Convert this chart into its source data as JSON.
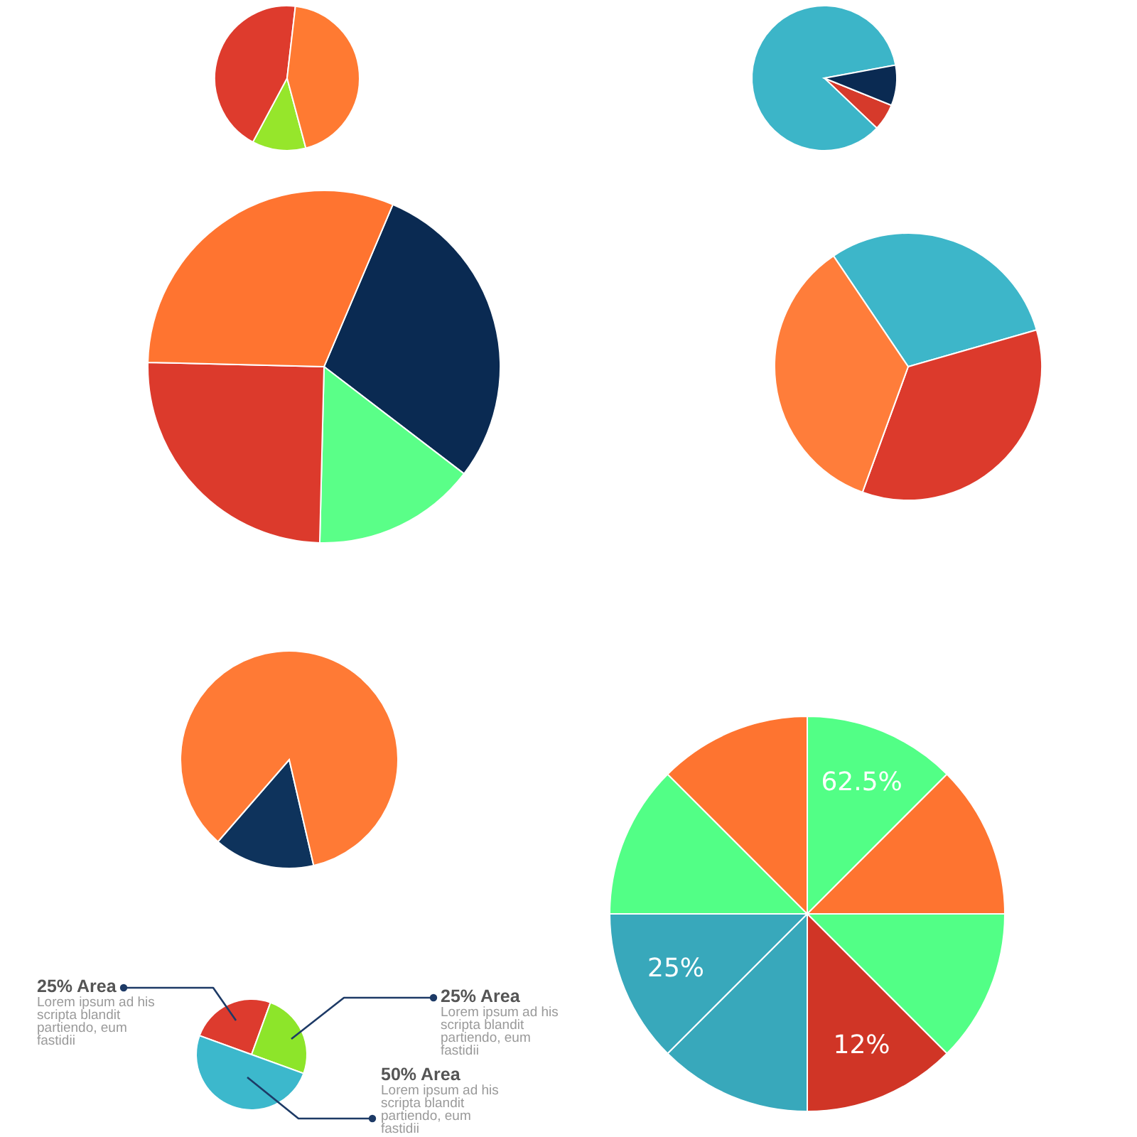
{
  "chart_data": [
    {
      "type": "pie",
      "categories": [
        null,
        null,
        null
      ],
      "values": [
        12,
        44,
        44
      ],
      "colors": [
        "#96e62b",
        "#de3b2d",
        "#ff7a32"
      ]
    },
    {
      "type": "pie",
      "categories": [
        null,
        null,
        null
      ],
      "values": [
        6,
        85,
        9
      ],
      "colors": [
        "#d63a2b",
        "#3cb5c8",
        "#0a2a52"
      ]
    },
    {
      "type": "pie",
      "categories": [
        null,
        null,
        null,
        null
      ],
      "values": [
        29,
        15,
        25,
        31
      ],
      "colors": [
        "#0a2a52",
        "#5aff88",
        "#dc3a2c",
        "#ff7430"
      ]
    },
    {
      "type": "pie",
      "categories": [
        null,
        null,
        null
      ],
      "values": [
        30,
        35,
        35
      ],
      "colors": [
        "#3db6c9",
        "#dc3a2c",
        "#ff7d3a"
      ]
    },
    {
      "type": "pie",
      "categories": [
        null,
        null
      ],
      "values": [
        15,
        85
      ],
      "colors": [
        "#0e335c",
        "#ff7a35"
      ]
    },
    {
      "type": "pie",
      "categories": [
        null,
        null,
        null,
        null,
        null,
        null,
        null,
        null
      ],
      "values": [
        12.5,
        12.5,
        12.5,
        12.5,
        12.5,
        12.5,
        12.5,
        12.5
      ],
      "colors": [
        "#52ff86",
        "#fe7430",
        "#52ff86",
        "#d03526",
        "#38a8bb",
        "#38a8bb",
        "#52ff86",
        "#fe7430"
      ],
      "annotations": [
        "62.5%",
        "12%",
        "25%"
      ]
    },
    {
      "type": "pie",
      "categories": [
        "Lorem ipsum ad his scripta blandit partiendo, eum fastidii",
        "Lorem ipsum ad his scripta blandit partiendo, eum fastidii",
        "Lorem ipsum ad his scripta blandit partiendo, eum fastidii"
      ],
      "values": [
        25,
        25,
        50
      ],
      "colors": [
        "#dd3b2e",
        "#8de52a",
        "#3cb8cc"
      ],
      "value_labels": [
        "25% Area",
        "25% Area",
        "50% Area"
      ]
    }
  ]
}
